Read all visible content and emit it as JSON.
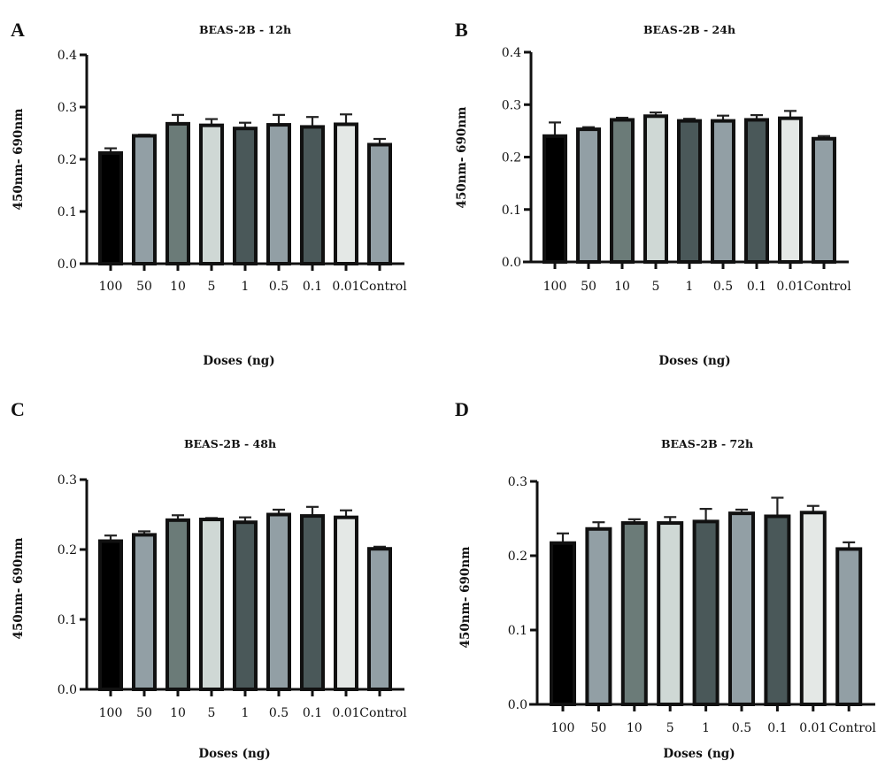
{
  "figure": {
    "panels": [
      "A",
      "B",
      "C",
      "D"
    ]
  },
  "chart_data": [
    {
      "panel": "A",
      "type": "bar",
      "title": "BEAS-2B - 12h",
      "xlabel": "Doses (ng)",
      "ylabel": "450nm- 690nm",
      "categories": [
        "100",
        "50",
        "10",
        "5",
        "1",
        "0.5",
        "0.1",
        "0.01",
        "Control"
      ],
      "values": [
        0.212,
        0.245,
        0.268,
        0.265,
        0.259,
        0.266,
        0.262,
        0.267,
        0.228
      ],
      "error_upper": [
        0.221,
        0.247,
        0.285,
        0.277,
        0.27,
        0.285,
        0.281,
        0.286,
        0.239
      ],
      "ylim": [
        0,
        0.4
      ],
      "yticks": [
        "0.0",
        "0.1",
        "0.2",
        "0.3",
        "0.4"
      ],
      "ytick_values": [
        0,
        0.1,
        0.2,
        0.3,
        0.4
      ],
      "grid": false,
      "bar_colors": [
        "#000000",
        "#929fa5",
        "#6b7b78",
        "#cfd8d5",
        "#4a5859",
        "#929fa5",
        "#4a5859",
        "#e4e8e6",
        "#929fa5"
      ]
    },
    {
      "panel": "B",
      "type": "bar",
      "title": "BEAS-2B - 24h",
      "xlabel": "Doses (ng)",
      "ylabel": "450nm- 690nm",
      "categories": [
        "100",
        "50",
        "10",
        "5",
        "1",
        "0.5",
        "0.1",
        "0.01",
        "Control"
      ],
      "values": [
        0.24,
        0.253,
        0.271,
        0.278,
        0.269,
        0.269,
        0.271,
        0.274,
        0.235
      ],
      "error_upper": [
        0.266,
        0.257,
        0.275,
        0.285,
        0.273,
        0.279,
        0.28,
        0.288,
        0.24
      ],
      "ylim": [
        0,
        0.4
      ],
      "yticks": [
        "0.0",
        "0.1",
        "0.2",
        "0.3",
        "0.4"
      ],
      "ytick_values": [
        0,
        0.1,
        0.2,
        0.3,
        0.4
      ],
      "grid": false,
      "bar_colors": [
        "#000000",
        "#929fa5",
        "#6b7b78",
        "#cfd8d5",
        "#4a5859",
        "#929fa5",
        "#4a5859",
        "#e4e8e6",
        "#929fa5"
      ]
    },
    {
      "panel": "C",
      "type": "bar",
      "title": "BEAS-2B - 48h",
      "xlabel": "Doses (ng)",
      "ylabel": "450nm- 690nm",
      "categories": [
        "100",
        "50",
        "10",
        "5",
        "1",
        "0.5",
        "0.1",
        "0.01",
        "Control"
      ],
      "values": [
        0.212,
        0.221,
        0.242,
        0.243,
        0.239,
        0.25,
        0.248,
        0.246,
        0.201
      ],
      "error_upper": [
        0.22,
        0.226,
        0.249,
        0.245,
        0.246,
        0.257,
        0.261,
        0.256,
        0.204
      ],
      "ylim": [
        0,
        0.3
      ],
      "yticks": [
        "0.0",
        "0.1",
        "0.2",
        "0.3"
      ],
      "ytick_values": [
        0,
        0.1,
        0.2,
        0.3
      ],
      "grid": false,
      "bar_colors": [
        "#000000",
        "#929fa5",
        "#6b7b78",
        "#cfd8d5",
        "#4a5859",
        "#929fa5",
        "#4a5859",
        "#e4e8e6",
        "#929fa5"
      ]
    },
    {
      "panel": "D",
      "type": "bar",
      "title": "BEAS-2B - 72h",
      "xlabel": "Doses (ng)",
      "ylabel": "450nm- 690nm",
      "categories": [
        "100",
        "50",
        "10",
        "5",
        "1",
        "0.5",
        "0.1",
        "0.01",
        "Control"
      ],
      "values": [
        0.217,
        0.236,
        0.244,
        0.244,
        0.246,
        0.257,
        0.253,
        0.258,
        0.209
      ],
      "error_upper": [
        0.23,
        0.245,
        0.249,
        0.252,
        0.263,
        0.262,
        0.278,
        0.267,
        0.218
      ],
      "ylim": [
        0,
        0.3
      ],
      "yticks": [
        "0.0",
        "0.1",
        "0.2",
        "0.3"
      ],
      "ytick_values": [
        0,
        0.1,
        0.2,
        0.3
      ],
      "grid": false,
      "bar_colors": [
        "#000000",
        "#929fa5",
        "#6b7b78",
        "#cfd8d5",
        "#4a5859",
        "#929fa5",
        "#4a5859",
        "#e4e8e6",
        "#929fa5"
      ]
    }
  ]
}
